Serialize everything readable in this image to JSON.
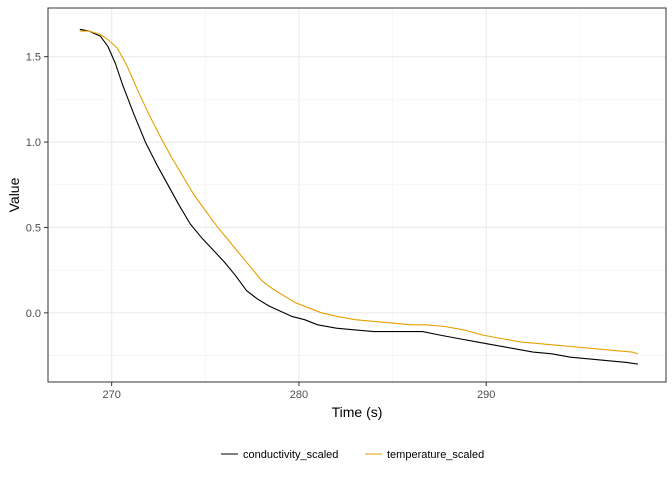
{
  "chart_data": {
    "type": "line",
    "title": "",
    "xlabel": "Time (s)",
    "ylabel": "Value",
    "xlim": [
      266.6,
      299.6
    ],
    "ylim": [
      -0.405,
      1.785
    ],
    "x_major_ticks": [
      270,
      280,
      290
    ],
    "x_tick_labels": [
      "270",
      "280",
      "290"
    ],
    "x_minor_ticks": [
      275,
      285,
      295
    ],
    "y_major_ticks": [
      0.0,
      0.5,
      1.0,
      1.5
    ],
    "y_tick_labels": [
      "0.0",
      "0.5",
      "1.0",
      "1.5"
    ],
    "y_minor_ticks": [
      -0.25,
      0.25,
      0.75,
      1.25,
      1.75
    ],
    "grid": true,
    "legend_position": "bottom",
    "series": [
      {
        "name": "conductivity_scaled",
        "color": "#000000",
        "x": [
          268.3,
          268.8,
          269.4,
          269.8,
          270.2,
          270.6,
          271.2,
          271.8,
          272.4,
          273.0,
          273.6,
          274.2,
          274.8,
          275.4,
          276.0,
          276.6,
          277.2,
          277.8,
          278.4,
          279.0,
          279.6,
          280.3,
          281.0,
          282.0,
          283.0,
          284.0,
          285.0,
          286.0,
          286.6,
          287.5,
          288.5,
          289.5,
          290.5,
          291.5,
          292.5,
          293.5,
          294.5,
          295.5,
          296.5,
          297.5,
          298.1
        ],
        "values": [
          1.66,
          1.65,
          1.62,
          1.56,
          1.46,
          1.33,
          1.16,
          1.0,
          0.87,
          0.75,
          0.63,
          0.52,
          0.44,
          0.37,
          0.3,
          0.22,
          0.13,
          0.08,
          0.04,
          0.01,
          -0.02,
          -0.04,
          -0.07,
          -0.09,
          -0.1,
          -0.11,
          -0.11,
          -0.11,
          -0.11,
          -0.13,
          -0.15,
          -0.17,
          -0.19,
          -0.21,
          -0.23,
          -0.24,
          -0.26,
          -0.27,
          -0.28,
          -0.29,
          -0.3
        ]
      },
      {
        "name": "temperature_scaled",
        "color": "#E69F00",
        "x": [
          268.3,
          268.8,
          269.4,
          269.8,
          270.3,
          270.8,
          271.4,
          272.0,
          272.6,
          273.2,
          273.8,
          274.4,
          275.0,
          275.6,
          276.2,
          276.8,
          277.4,
          278.0,
          278.6,
          279.2,
          279.8,
          280.5,
          281.2,
          282.0,
          283.0,
          284.0,
          285.0,
          286.0,
          286.8,
          287.8,
          288.8,
          289.8,
          290.8,
          291.8,
          292.8,
          293.8,
          294.8,
          295.8,
          296.8,
          297.8,
          298.1
        ],
        "values": [
          1.65,
          1.65,
          1.63,
          1.6,
          1.55,
          1.45,
          1.3,
          1.16,
          1.03,
          0.91,
          0.8,
          0.69,
          0.6,
          0.51,
          0.43,
          0.35,
          0.27,
          0.19,
          0.14,
          0.1,
          0.06,
          0.03,
          0.0,
          -0.02,
          -0.04,
          -0.05,
          -0.06,
          -0.07,
          -0.07,
          -0.08,
          -0.1,
          -0.13,
          -0.15,
          -0.17,
          -0.18,
          -0.19,
          -0.2,
          -0.21,
          -0.22,
          -0.23,
          -0.24
        ]
      }
    ]
  }
}
